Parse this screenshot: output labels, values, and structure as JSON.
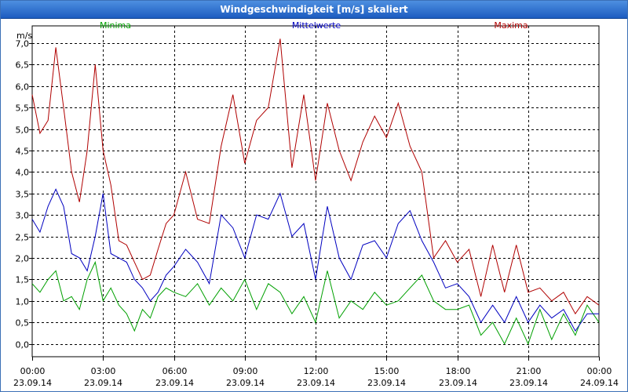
{
  "chart_data": {
    "type": "line",
    "title": "Windgeschwindigkeit [m/s] skaliert",
    "ylabel": "m/s",
    "ylim": [
      -0.3,
      7.4
    ],
    "yticks": [
      0.0,
      0.5,
      1.0,
      1.5,
      2.0,
      2.5,
      3.0,
      3.5,
      4.0,
      4.5,
      5.0,
      5.5,
      6.0,
      6.5,
      7.0
    ],
    "ytick_labels": [
      "0,0",
      "0,5",
      "1,0",
      "1,5",
      "2,0",
      "2,5",
      "3,0",
      "3,5",
      "4,0",
      "4,5",
      "5,0",
      "5,5",
      "6,0",
      "6,5",
      "7,0"
    ],
    "xlim": [
      0,
      24
    ],
    "xticks": [
      {
        "hour": 0,
        "time": "00:00",
        "date": "23.09.14"
      },
      {
        "hour": 3,
        "time": "03:00",
        "date": "23.09.14"
      },
      {
        "hour": 6,
        "time": "06:00",
        "date": "23.09.14"
      },
      {
        "hour": 9,
        "time": "09:00",
        "date": "23.09.14"
      },
      {
        "hour": 12,
        "time": "12:00",
        "date": "23.09.14"
      },
      {
        "hour": 15,
        "time": "15:00",
        "date": "23.09.14"
      },
      {
        "hour": 18,
        "time": "18:00",
        "date": "23.09.14"
      },
      {
        "hour": 21,
        "time": "21:00",
        "date": "23.09.14"
      },
      {
        "hour": 24,
        "time": "00:00",
        "date": "24.09.14"
      }
    ],
    "grid": true,
    "series": [
      {
        "name": "Minima",
        "color": "#00a000",
        "x": [
          0,
          0.33,
          0.67,
          1.0,
          1.33,
          1.67,
          2.0,
          2.33,
          2.67,
          3.0,
          3.33,
          3.67,
          4.0,
          4.33,
          4.67,
          5.0,
          5.33,
          5.67,
          6.0,
          6.5,
          7.0,
          7.5,
          8.0,
          8.5,
          9.0,
          9.5,
          10.0,
          10.5,
          11.0,
          11.5,
          12.0,
          12.5,
          13.0,
          13.5,
          14.0,
          14.5,
          15.0,
          15.5,
          16.0,
          16.5,
          17.0,
          17.5,
          18.0,
          18.5,
          19.0,
          19.5,
          20.0,
          20.5,
          21.0,
          21.5,
          22.0,
          22.5,
          23.0,
          23.5,
          24.0
        ],
        "values": [
          1.4,
          1.2,
          1.5,
          1.7,
          1.0,
          1.1,
          0.8,
          1.5,
          1.9,
          1.0,
          1.3,
          0.9,
          0.7,
          0.3,
          0.8,
          0.6,
          1.1,
          1.3,
          1.2,
          1.1,
          1.4,
          0.9,
          1.3,
          1.0,
          1.5,
          0.8,
          1.4,
          1.2,
          0.7,
          1.1,
          0.5,
          1.7,
          0.6,
          1.0,
          0.8,
          1.2,
          0.9,
          1.0,
          1.3,
          1.6,
          1.0,
          0.8,
          0.8,
          0.9,
          0.2,
          0.5,
          0.0,
          0.6,
          0.0,
          0.8,
          0.1,
          0.7,
          0.2,
          0.9,
          0.5
        ]
      },
      {
        "name": "Mittelwerte",
        "color": "#0000c0",
        "x": [
          0,
          0.33,
          0.67,
          1.0,
          1.33,
          1.67,
          2.0,
          2.33,
          2.67,
          3.0,
          3.33,
          3.67,
          4.0,
          4.33,
          4.67,
          5.0,
          5.33,
          5.67,
          6.0,
          6.5,
          7.0,
          7.5,
          8.0,
          8.5,
          9.0,
          9.5,
          10.0,
          10.5,
          11.0,
          11.5,
          12.0,
          12.5,
          13.0,
          13.5,
          14.0,
          14.5,
          15.0,
          15.5,
          16.0,
          16.5,
          17.0,
          17.5,
          18.0,
          18.5,
          19.0,
          19.5,
          20.0,
          20.5,
          21.0,
          21.5,
          22.0,
          22.5,
          23.0,
          23.5,
          24.0
        ],
        "values": [
          2.9,
          2.6,
          3.2,
          3.6,
          3.2,
          2.1,
          2.0,
          1.7,
          2.5,
          3.5,
          2.1,
          2.0,
          1.9,
          1.5,
          1.3,
          1.0,
          1.2,
          1.6,
          1.8,
          2.2,
          1.9,
          1.4,
          3.0,
          2.7,
          2.0,
          3.0,
          2.9,
          3.5,
          2.5,
          2.8,
          1.5,
          3.2,
          2.0,
          1.5,
          2.3,
          2.4,
          2.0,
          2.8,
          3.1,
          2.4,
          1.9,
          1.3,
          1.4,
          1.1,
          0.5,
          0.9,
          0.5,
          1.1,
          0.5,
          0.9,
          0.6,
          0.8,
          0.3,
          0.7,
          0.7
        ]
      },
      {
        "name": "Maxima",
        "color": "#b00000",
        "x": [
          0,
          0.33,
          0.67,
          1.0,
          1.33,
          1.67,
          2.0,
          2.33,
          2.67,
          3.0,
          3.33,
          3.67,
          4.0,
          4.33,
          4.67,
          5.0,
          5.33,
          5.67,
          6.0,
          6.5,
          7.0,
          7.5,
          8.0,
          8.5,
          9.0,
          9.5,
          10.0,
          10.5,
          11.0,
          11.5,
          12.0,
          12.5,
          13.0,
          13.5,
          14.0,
          14.5,
          15.0,
          15.5,
          16.0,
          16.5,
          17.0,
          17.5,
          18.0,
          18.5,
          19.0,
          19.5,
          20.0,
          20.5,
          21.0,
          21.5,
          22.0,
          22.5,
          23.0,
          23.5,
          24.0
        ],
        "values": [
          5.8,
          4.9,
          5.2,
          6.9,
          5.5,
          4.0,
          3.3,
          4.5,
          6.5,
          4.5,
          3.7,
          2.4,
          2.3,
          1.9,
          1.5,
          1.6,
          2.2,
          2.8,
          3.0,
          4.0,
          2.9,
          2.8,
          4.6,
          5.8,
          4.2,
          5.2,
          5.5,
          7.1,
          4.1,
          5.8,
          3.8,
          5.6,
          4.5,
          3.8,
          4.7,
          5.3,
          4.8,
          5.6,
          4.6,
          4.0,
          2.0,
          2.4,
          1.9,
          2.2,
          1.1,
          2.3,
          1.2,
          2.3,
          1.2,
          1.3,
          1.0,
          1.2,
          0.7,
          1.1,
          0.9
        ]
      }
    ]
  }
}
